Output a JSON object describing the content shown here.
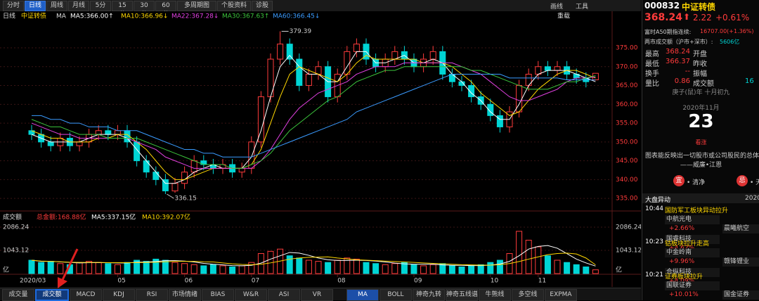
{
  "toolbar": {
    "tabs": [
      "分时",
      "日线",
      "周线",
      "月线",
      "5分",
      "15分",
      "30分",
      "60分",
      "多周期图",
      "个股资料",
      "诊股"
    ],
    "active": 1,
    "tools": [
      "画线",
      "工具"
    ]
  },
  "chart_header": {
    "period": "日线",
    "name": "中证转债",
    "indicator": "MA",
    "reload": "重载"
  },
  "price_chart": {
    "type": "candlestick",
    "up_color": "#ff3b3b",
    "down_color": "#00d5d5",
    "open": [
      353,
      352,
      350,
      349,
      351,
      349,
      350,
      352,
      353,
      352,
      353,
      350,
      345,
      342,
      340,
      337,
      339,
      342,
      345,
      344,
      343,
      344,
      342,
      343,
      350,
      362,
      372,
      376,
      372,
      365,
      368,
      370,
      362,
      368,
      374,
      376,
      372,
      370,
      372,
      374,
      372,
      370,
      372,
      374,
      368,
      366,
      365,
      362,
      360,
      357,
      354,
      358,
      365,
      368,
      370,
      369,
      370,
      368,
      367,
      366.5
    ],
    "high": [
      354.5,
      353.5,
      351.5,
      352.5,
      352.5,
      351.5,
      353.5,
      354.5,
      354.5,
      354.5,
      354.5,
      351.5,
      346.5,
      343.5,
      341.5,
      340.5,
      343.5,
      346.5,
      346.5,
      345.5,
      345.5,
      345.5,
      344.5,
      351.5,
      363.5,
      373.5,
      379.39,
      377.5,
      373.5,
      369.5,
      371.5,
      371.5,
      369.5,
      375.5,
      377.5,
      377.5,
      373.5,
      373.5,
      375.5,
      375.5,
      373.5,
      373.5,
      375.5,
      375.5,
      369.5,
      367.5,
      366.5,
      363.5,
      361.5,
      358.5,
      359.5,
      366.5,
      369.5,
      371.5,
      371.5,
      371.5,
      371.5,
      369.5,
      368.5,
      368.24
    ],
    "low": [
      350.5,
      348.5,
      347.5,
      347.5,
      347.5,
      347.5,
      348.5,
      350.5,
      350.5,
      350.5,
      348.5,
      343.5,
      340.5,
      338.5,
      336.15,
      336.5,
      337.5,
      340.5,
      342.5,
      341.5,
      341.5,
      340.5,
      340.5,
      341.5,
      348.5,
      360.5,
      370.5,
      370.5,
      363.5,
      363.5,
      366.5,
      360.5,
      360.5,
      366.5,
      372.5,
      370.5,
      368.5,
      368.5,
      370.5,
      370.5,
      368.5,
      368.5,
      370.5,
      366.5,
      364.5,
      363.5,
      360.5,
      358.5,
      355.5,
      352.5,
      352.5,
      356.5,
      363.5,
      366.5,
      367.5,
      367.5,
      366.5,
      365.5,
      364.5,
      366.37
    ],
    "close": [
      352,
      350,
      349,
      351,
      349,
      350,
      352,
      353,
      352,
      353,
      350,
      345,
      342,
      340,
      337,
      339,
      342,
      345,
      344,
      343,
      344,
      342,
      343,
      350,
      362,
      372,
      376,
      372,
      365,
      368,
      370,
      362,
      368,
      374,
      376,
      372,
      370,
      372,
      374,
      372,
      370,
      372,
      374,
      368,
      366,
      365,
      362,
      360,
      357,
      354,
      358,
      365,
      368,
      370,
      369,
      370,
      368,
      367,
      366,
      368.24
    ],
    "ma_series": [
      {
        "name": "MA5:366.00↑",
        "color": "#ffffff",
        "values": [
          352,
          351,
          350,
          350,
          350,
          350,
          351,
          352,
          352,
          352,
          351,
          348,
          345,
          342,
          339,
          339,
          340,
          342,
          343,
          344,
          343,
          343,
          343,
          346,
          353,
          362,
          370,
          373,
          370,
          368,
          368,
          366,
          366,
          370,
          374,
          374,
          371,
          371,
          372,
          373,
          371,
          371,
          372,
          371,
          368,
          366,
          363,
          361,
          358,
          356,
          356,
          360,
          365,
          368,
          369,
          369,
          369,
          368,
          367,
          366.0
        ]
      },
      {
        "name": "MA10:366.96↓",
        "color": "#ffd700",
        "values": [
          353,
          352,
          351,
          351,
          350,
          350,
          350,
          351,
          351,
          352,
          352,
          350,
          348,
          345,
          342,
          340,
          340,
          341,
          342,
          343,
          343,
          343,
          343,
          344,
          348,
          355,
          362,
          368,
          370,
          369,
          368,
          367,
          366,
          368,
          371,
          373,
          372,
          372,
          372,
          372,
          372,
          371,
          371,
          371,
          370,
          368,
          366,
          363,
          361,
          359,
          357,
          358,
          361,
          364,
          366,
          368,
          369,
          369,
          368,
          366.96
        ]
      },
      {
        "name": "MA22:367.28↓",
        "color": "#e040e0",
        "values": [
          355,
          354,
          353,
          352,
          352,
          351,
          351,
          351,
          351,
          351,
          351,
          350,
          349,
          348,
          346,
          345,
          344,
          343,
          343,
          343,
          343,
          343,
          343,
          343,
          345,
          348,
          352,
          356,
          359,
          361,
          363,
          364,
          365,
          366,
          368,
          369,
          370,
          370,
          370,
          371,
          371,
          371,
          371,
          371,
          371,
          370,
          369,
          368,
          366,
          364,
          362,
          361,
          361,
          362,
          363,
          364,
          366,
          367,
          367,
          367.28
        ]
      },
      {
        "name": "MA30:367.63↑",
        "color": "#3cc43c",
        "values": [
          356,
          355,
          354,
          354,
          353,
          352,
          352,
          352,
          351,
          351,
          351,
          351,
          350,
          349,
          348,
          347,
          346,
          345,
          344,
          344,
          344,
          343,
          343,
          344,
          345,
          347,
          350,
          353,
          355,
          357,
          359,
          361,
          362,
          364,
          366,
          367,
          368,
          369,
          369,
          370,
          370,
          370,
          370,
          370,
          370,
          370,
          369,
          369,
          368,
          367,
          366,
          365,
          364,
          364,
          364,
          365,
          366,
          366,
          367,
          367.63
        ]
      },
      {
        "name": "MA60:366.45↓",
        "color": "#3a9bff",
        "values": [
          357,
          357,
          356,
          356,
          355,
          355,
          354,
          354,
          354,
          353,
          353,
          353,
          352,
          351,
          350,
          349,
          348,
          348,
          347,
          347,
          346,
          346,
          346,
          346,
          347,
          348,
          349,
          350,
          351,
          352,
          353,
          354,
          355,
          356,
          358,
          359,
          360,
          361,
          362,
          363,
          364,
          365,
          366,
          367,
          368,
          368,
          368,
          368,
          368,
          368,
          367,
          367,
          367,
          367,
          367,
          367,
          366.5,
          366.5,
          366.5,
          366.45
        ]
      }
    ],
    "ylim": [
      332.6,
      382.1
    ],
    "yticks": [
      {
        "value": 335,
        "label": "335.00"
      },
      {
        "value": 340,
        "label": "340.00"
      },
      {
        "value": 345,
        "label": "345.00"
      },
      {
        "value": 350,
        "label": "350.00"
      },
      {
        "value": 355,
        "label": "355.00"
      },
      {
        "value": 360,
        "label": "360.00"
      },
      {
        "value": 365,
        "label": "365.00"
      },
      {
        "value": 370,
        "label": "370.00"
      },
      {
        "value": 375,
        "label": "375.00"
      }
    ],
    "grid": true,
    "xticks": [
      {
        "value": 0,
        "label": "2020/03"
      },
      {
        "value": 9,
        "label": "05"
      },
      {
        "value": 16,
        "label": "06"
      },
      {
        "value": 23,
        "label": "07"
      },
      {
        "value": 32,
        "label": "08"
      },
      {
        "value": 40,
        "label": "09"
      },
      {
        "value": 48,
        "label": "10"
      },
      {
        "value": 53,
        "label": "11"
      }
    ]
  },
  "volume_chart": {
    "type": "bar",
    "title": "成交额",
    "total_label": "总金额:168.88亿",
    "values": [
      600,
      500,
      550,
      450,
      400,
      500,
      550,
      500,
      450,
      400,
      500,
      600,
      550,
      650,
      600,
      500,
      450,
      400,
      350,
      400,
      350,
      300,
      350,
      500,
      900,
      1000,
      1100,
      800,
      700,
      600,
      550,
      500,
      600,
      700,
      650,
      500,
      450,
      400,
      450,
      500,
      400,
      350,
      400,
      450,
      350,
      300,
      350,
      400,
      500,
      600,
      900,
      1900,
      1500,
      1200,
      800,
      600,
      500,
      400,
      300,
      168.88
    ],
    "ma_series": [
      {
        "name": "MA5:337.15亿",
        "color": "#ffffff",
        "values": [
          600,
          550,
          550,
          525,
          500,
          480,
          490,
          490,
          490,
          480,
          480,
          510,
          520,
          540,
          580,
          580,
          560,
          520,
          460,
          420,
          390,
          360,
          350,
          370,
          470,
          650,
          800,
          950,
          920,
          820,
          700,
          620,
          590,
          590,
          600,
          590,
          560,
          520,
          470,
          440,
          420,
          420,
          420,
          390,
          370,
          370,
          360,
          360,
          380,
          430,
          550,
          800,
          1100,
          1220,
          1260,
          1140,
          900,
          650,
          480,
          337.15
        ]
      },
      {
        "name": "MA10:392.07亿",
        "color": "#ffd700",
        "values": [
          600,
          560,
          550,
          530,
          510,
          500,
          500,
          500,
          490,
          490,
          490,
          490,
          500,
          510,
          530,
          550,
          550,
          550,
          530,
          520,
          480,
          440,
          410,
          400,
          420,
          480,
          560,
          650,
          700,
          730,
          740,
          750,
          700,
          660,
          620,
          600,
          580,
          560,
          540,
          520,
          500,
          480,
          460,
          440,
          420,
          400,
          390,
          380,
          380,
          400,
          450,
          540,
          650,
          750,
          850,
          900,
          920,
          880,
          700,
          392.07
        ]
      }
    ],
    "ylim": [
      0,
      2086.24
    ],
    "yticks": [
      {
        "value": 0,
        "label": "亿"
      },
      1043.12,
      2086.24
    ]
  },
  "bottom_tabs": {
    "tabs": [
      "成交量",
      "成交额",
      "MACD",
      "KDJ",
      "RSI",
      "市场情绪",
      "BIAS",
      "W&R",
      "ASI",
      "VR",
      "MA",
      "BOLL",
      "神奇九转",
      "神奇五线谱",
      "牛熊线",
      "多空线",
      "EXPMA"
    ],
    "selected": 1,
    "highlighted": 10
  },
  "quote": {
    "code": "000832",
    "name": "中证转债",
    "price": "368.24",
    "change": "2.22",
    "pct": "+0.61%",
    "a50_label": "富时A50期指连续:",
    "a50": "16707.00(+1.36%)",
    "turnover_label": "两市成交额（沪市+深市）:",
    "turnover": "5606亿",
    "stats": [
      {
        "label": "最高",
        "value": "368.24",
        "label2": "开盘"
      },
      {
        "label": "最低",
        "value": "366.37",
        "label2": "昨收"
      },
      {
        "label": "换手",
        "value": "--",
        "label2": "振幅"
      },
      {
        "label": "量比",
        "value": "0.86",
        "label2": "成交额",
        "value2": "16"
      }
    ]
  },
  "calendar": {
    "lunar": "庚子(鼠)年 十月初九",
    "month": "2020年11月",
    "day": "23",
    "mood": "看涨",
    "quote": "图表能反映出一切股市或公司股民的总体心",
    "author": "——威廉•江恩",
    "good_icon": "宜",
    "good": "• 清净",
    "bad_icon": "忌",
    "bad": "• 天"
  },
  "news": {
    "title": "大盘异动",
    "date": "2020",
    "items": [
      {
        "time": "10:44",
        "title": "国防军工板块异动拉升",
        "stocks": [
          {
            "name": "中航光电",
            "pct": "+2.66%"
          },
          {
            "name": "晨曦航空"
          },
          {
            "name": "国睿科技",
            "pct": "+4.62%"
          }
        ]
      },
      {
        "time": "10:23",
        "title": "钴板块拉升走高",
        "stocks": [
          {
            "name": "中金岭南",
            "pct": "+9.96%"
          },
          {
            "name": "赣锋锂业"
          },
          {
            "name": "合纵科技",
            "pct": "+4.09%"
          }
        ]
      },
      {
        "time": "10:21",
        "title": "证券板块拉升",
        "stocks": [
          {
            "name": "国联证券",
            "pct": "+10.01%"
          },
          {
            "name": "国金证券"
          }
        ]
      }
    ]
  }
}
